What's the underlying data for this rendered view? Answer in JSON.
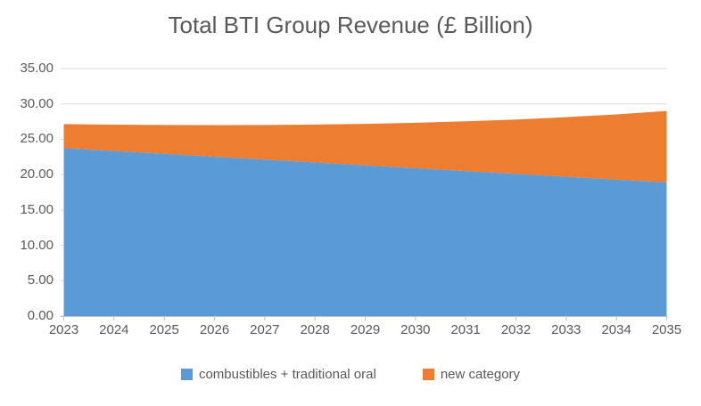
{
  "chart_data": {
    "type": "area",
    "stacked": true,
    "title": "Total BTI Group Revenue (£ Billion)",
    "categories": [
      "2023",
      "2024",
      "2025",
      "2026",
      "2027",
      "2028",
      "2029",
      "2030",
      "2031",
      "2032",
      "2033",
      "2034",
      "2035"
    ],
    "series": [
      {
        "name": "combustibles + traditional oral",
        "color": "#5B9BD5",
        "values": [
          23.75,
          23.35,
          22.94,
          22.54,
          22.13,
          21.73,
          21.32,
          20.92,
          20.51,
          20.11,
          19.71,
          19.3,
          18.9
        ]
      },
      {
        "name": "new category",
        "color": "#ED7D31",
        "values": [
          3.4,
          3.72,
          4.08,
          4.46,
          4.89,
          5.35,
          5.86,
          6.42,
          7.03,
          7.69,
          8.42,
          9.22,
          10.1
        ]
      }
    ],
    "xlabel": "",
    "ylabel": "",
    "ylim": [
      0,
      35
    ],
    "ytick_step": 5,
    "ytick_labels": [
      "0.00",
      "5.00",
      "10.00",
      "15.00",
      "20.00",
      "25.00",
      "30.00",
      "35.00"
    ],
    "grid": true,
    "legend_position": "bottom",
    "grid_color": "#D9D9D9",
    "axis_color": "#BFBFBF",
    "text_color": "#595959",
    "background_color": "#FFFFFF"
  }
}
